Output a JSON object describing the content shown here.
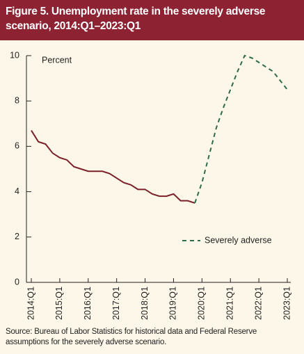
{
  "title": "Figure 5. Unemployment rate in the severely adverse scenario, 2014:Q1–2023:Q1",
  "source": "Source: Bureau of Labor Statistics for historical data and Federal Reserve assumptions for the severely adverse scenario.",
  "chart_data": {
    "type": "line",
    "y_label": "Percent",
    "categories": [
      "2014:Q1",
      null,
      null,
      null,
      "2015:Q1",
      null,
      null,
      null,
      "2016:Q1",
      null,
      null,
      null,
      "2017:Q1",
      null,
      null,
      null,
      "2018:Q1",
      null,
      null,
      null,
      "2019:Q1",
      null,
      null,
      null,
      "2020:Q1",
      null,
      null,
      null,
      "2021:Q1",
      null,
      null,
      null,
      "2022:Q1",
      null,
      null,
      null,
      "2023:Q1"
    ],
    "series": [
      {
        "color": "#7b1f2b",
        "linestyle": "solid",
        "values": [
          6.7,
          6.2,
          6.1,
          5.7,
          5.5,
          5.4,
          5.1,
          5.0,
          4.9,
          4.9,
          4.9,
          4.8,
          4.6,
          4.4,
          4.3,
          4.1,
          4.1,
          3.9,
          3.8,
          3.8,
          3.9,
          3.6,
          3.6,
          3.5,
          null,
          null,
          null,
          null,
          null,
          null,
          null,
          null,
          null,
          null,
          null,
          null,
          null
        ]
      },
      {
        "name": "Severely adverse",
        "color": "#2e6b4a",
        "linestyle": "dashed",
        "values": [
          null,
          null,
          null,
          null,
          null,
          null,
          null,
          null,
          null,
          null,
          null,
          null,
          null,
          null,
          null,
          null,
          null,
          null,
          null,
          null,
          null,
          null,
          null,
          3.5,
          4.4,
          5.6,
          6.8,
          7.7,
          8.5,
          9.3,
          10.0,
          9.9,
          9.7,
          9.5,
          9.3,
          8.9,
          8.5
        ]
      }
    ],
    "ylim": [
      0,
      10
    ],
    "yticks": [
      0,
      2,
      4,
      6,
      8,
      10
    ]
  }
}
